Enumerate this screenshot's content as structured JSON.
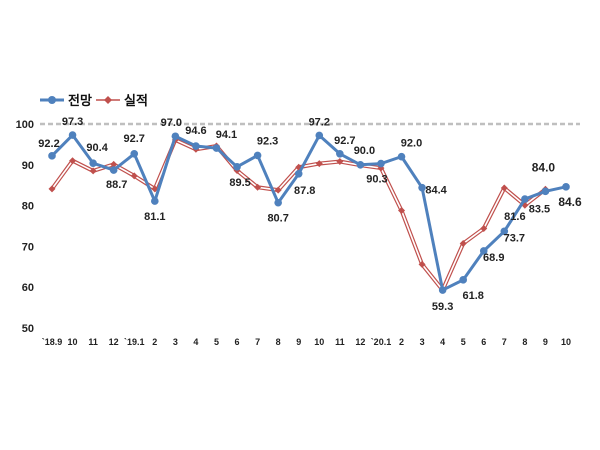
{
  "chart_data": {
    "type": "line",
    "categories": [
      "`18.9",
      "10",
      "11",
      "12",
      "`19.1",
      "2",
      "3",
      "4",
      "5",
      "6",
      "7",
      "8",
      "9",
      "10",
      "11",
      "12",
      "`20.1",
      "2",
      "3",
      "4",
      "5",
      "6",
      "7",
      "8",
      "9",
      "10"
    ],
    "ylim": [
      50,
      100
    ],
    "yticks": [
      "50",
      "60",
      "70",
      "80",
      "90",
      "100"
    ],
    "reference_line": 100,
    "legend_position": "top-left",
    "series": [
      {
        "name": "전망",
        "color": "#4f81bd",
        "marker": "circle",
        "values": [
          92.2,
          97.3,
          90.4,
          88.7,
          92.7,
          81.1,
          97.0,
          94.6,
          94.1,
          89.5,
          92.3,
          80.7,
          87.8,
          97.2,
          92.7,
          90.0,
          90.3,
          92.0,
          84.4,
          59.3,
          61.8,
          68.9,
          73.7,
          81.6,
          83.5,
          84.6
        ],
        "labels": [
          "92.2",
          "97.3",
          "90.4",
          "88.7",
          "92.7",
          "81.1",
          "97.0",
          "94.6",
          "94.1",
          "89.5",
          "92.3",
          "80.7",
          "87.8",
          "97.2",
          "92.7",
          "90.0",
          "90.3",
          "92.0",
          "84.4",
          "59.3",
          "61.8",
          "68.9",
          "73.7",
          "81.6",
          "83.5",
          "84.6"
        ]
      },
      {
        "name": "실적",
        "color": "#c0504d",
        "marker": "diamond",
        "values": [
          84.1,
          91.0,
          88.5,
          90.1,
          87.3,
          84.1,
          96.1,
          93.8,
          94.6,
          88.6,
          84.5,
          83.8,
          89.4,
          90.3,
          90.8,
          89.9,
          89.2,
          78.8,
          65.6,
          59.3,
          70.7,
          74.4,
          84.3,
          80.1,
          84.0,
          null
        ],
        "labels": [
          null,
          null,
          null,
          null,
          null,
          null,
          null,
          null,
          null,
          null,
          null,
          null,
          null,
          null,
          null,
          null,
          null,
          null,
          null,
          null,
          null,
          null,
          null,
          null,
          "84.0",
          null
        ]
      }
    ]
  }
}
